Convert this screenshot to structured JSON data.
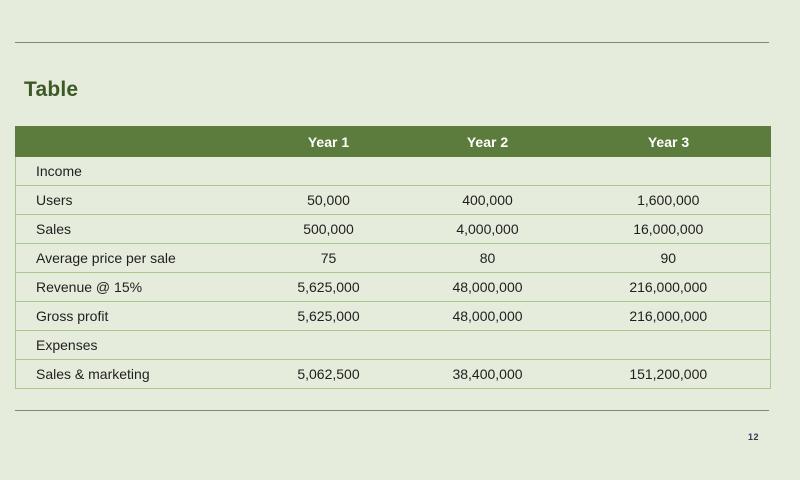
{
  "slide": {
    "title": "Table",
    "page_number": "12"
  },
  "table": {
    "headers": [
      "",
      "Year 1",
      "Year 2",
      "Year 3"
    ],
    "rows": [
      [
        "Income",
        "",
        "",
        ""
      ],
      [
        "Users",
        "50,000",
        "400,000",
        "1,600,000"
      ],
      [
        "Sales",
        "500,000",
        "4,000,000",
        "16,000,000"
      ],
      [
        "Average price per sale",
        "75",
        "80",
        "90"
      ],
      [
        "Revenue @ 15%",
        "5,625,000",
        "48,000,000",
        "216,000,000"
      ],
      [
        "Gross profit",
        "5,625,000",
        "48,000,000",
        "216,000,000"
      ],
      [
        "Expenses",
        "",
        "",
        ""
      ],
      [
        "Sales & marketing",
        "5,062,500",
        "38,400,000",
        "151,200,000"
      ]
    ]
  },
  "colors": {
    "background": "#e5ecdb",
    "header_fill": "#5b7c3d",
    "title_text": "#3d5a26",
    "cell_border": "#a9c88b"
  }
}
